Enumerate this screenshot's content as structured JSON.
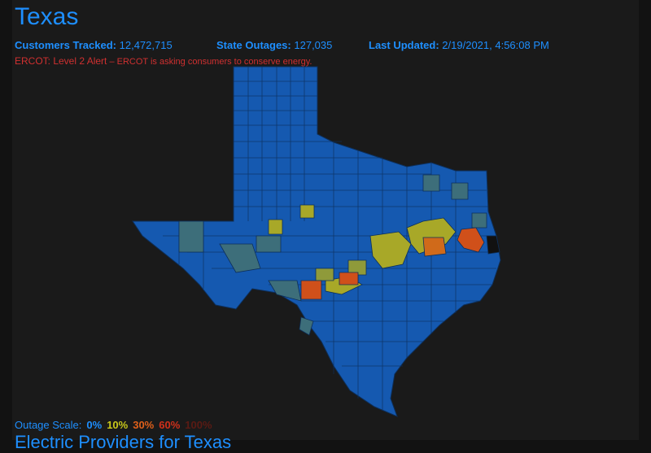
{
  "header": {
    "title": "Texas",
    "stats": [
      {
        "label": "Customers Tracked:",
        "value": "12,472,715"
      },
      {
        "label": "State Outages:",
        "value": "127,035"
      },
      {
        "label": "Last Updated:",
        "value": "2/19/2021, 4:56:08 PM"
      }
    ],
    "alert": {
      "title": "ERCOT: Level 2 Alert",
      "message": " – ERCOT is asking consumers to conserve energy."
    }
  },
  "legend": {
    "label": "Outage Scale:",
    "steps": [
      {
        "text": "0%",
        "color": "#1e8fff"
      },
      {
        "text": "10%",
        "color": "#c9c81a"
      },
      {
        "text": "30%",
        "color": "#e0601a"
      },
      {
        "text": "60%",
        "color": "#d0301a"
      },
      {
        "text": "100%",
        "color": "#5a1a14"
      }
    ]
  },
  "footer": {
    "heading": "Electric Providers for Texas"
  }
}
